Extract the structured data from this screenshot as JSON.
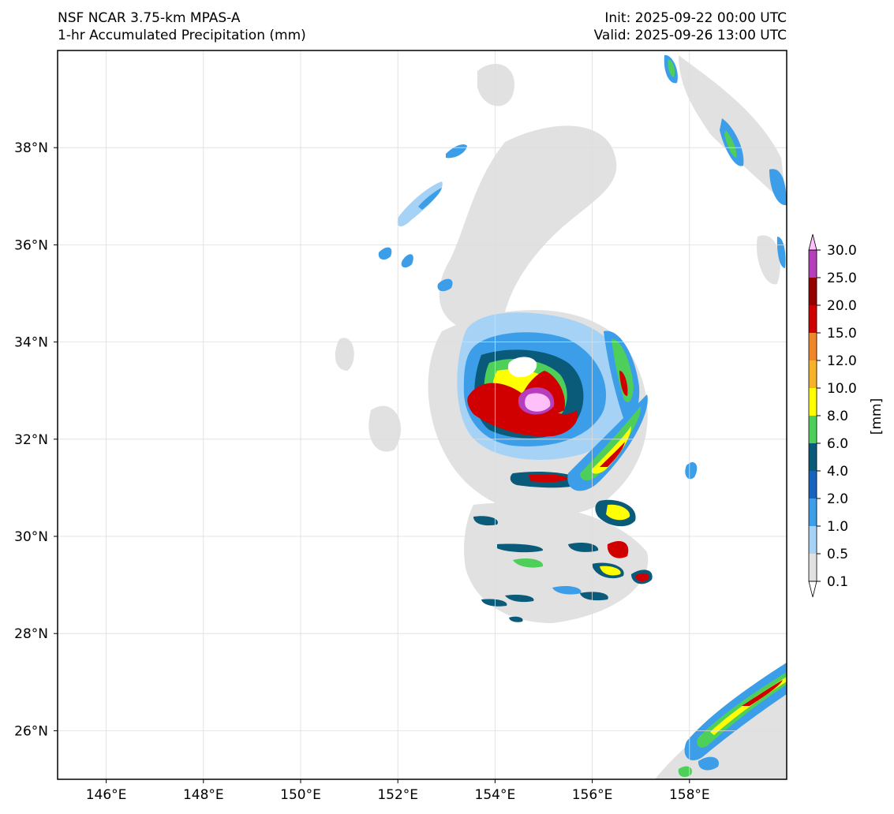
{
  "header": {
    "title_left_line1": "NSF NCAR 3.75-km MPAS-A",
    "title_left_line2": "1-hr Accumulated Precipitation (mm)",
    "title_right_line1": "Init: 2025-09-22 00:00 UTC",
    "title_right_line2": "Valid: 2025-09-26 13:00 UTC"
  },
  "map": {
    "lon_range": [
      145,
      160
    ],
    "lat_range": [
      25,
      40
    ],
    "lon_ticks": [
      "146°E",
      "148°E",
      "150°E",
      "152°E",
      "154°E",
      "156°E",
      "158°E"
    ],
    "lat_ticks": [
      "38°N",
      "36°N",
      "34°N",
      "32°N",
      "30°N",
      "28°N",
      "26°N"
    ],
    "gridlines": true
  },
  "colorbar": {
    "unit_label": "[mm]",
    "levels": [
      "0.1",
      "0.5",
      "1.0",
      "2.0",
      "4.0",
      "6.0",
      "8.0",
      "10.0",
      "12.0",
      "15.0",
      "20.0",
      "25.0",
      "30.0"
    ],
    "colors": [
      "#e1e1e1",
      "#a6d2f5",
      "#3c9ee8",
      "#1664c0",
      "#0a5a7a",
      "#4dcf5a",
      "#ffff00",
      "#f6b228",
      "#ef8628",
      "#d10000",
      "#970000",
      "#b63dbb",
      "#ffbff9"
    ],
    "extend": "both"
  }
}
